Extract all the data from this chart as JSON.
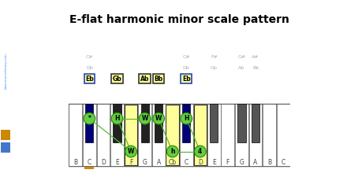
{
  "title": "E-flat harmonic minor scale pattern",
  "white_names": [
    "B",
    "C",
    "D",
    "E",
    "F",
    "G",
    "A",
    "Cb",
    "C",
    "D",
    "E",
    "F",
    "G",
    "A",
    "B",
    "C"
  ],
  "n_white": 16,
  "black_positions": [
    1,
    3,
    5,
    6,
    8,
    10,
    12,
    13
  ],
  "blue_blacks": [
    1,
    8
  ],
  "yellow_whites": [
    4,
    7,
    9
  ],
  "orange_underline_idx": 1,
  "black_top_labels": {
    "1": {
      "l1": "C#",
      "l2": "Db",
      "note": "Eb",
      "boxed": true
    },
    "3": {
      "l1": "",
      "l2": "",
      "note": "Gb",
      "boxed": true
    },
    "5": {
      "l1": "",
      "l2": "",
      "note": "Ab",
      "boxed": true
    },
    "6": {
      "l1": "",
      "l2": "",
      "note": "Bb",
      "boxed": true
    },
    "8": {
      "l1": "C#",
      "l2": "Db",
      "note": "Eb",
      "boxed": true
    },
    "10": {
      "l1": "F#",
      "l2": "Gb",
      "note": "",
      "boxed": false
    },
    "12": {
      "l1": "G#",
      "l2": "Ab",
      "note": "",
      "boxed": false
    },
    "13": {
      "l1": "A#",
      "l2": "Bb",
      "note": "",
      "boxed": false
    }
  },
  "circles": [
    {
      "bp": 1,
      "on_black": true,
      "label": "*"
    },
    {
      "bp": 3,
      "on_black": true,
      "label": "H"
    },
    {
      "bp": 5,
      "on_black": true,
      "label": "W"
    },
    {
      "bp": 6,
      "on_black": true,
      "label": "W"
    },
    {
      "bp": 8,
      "on_black": true,
      "label": "H"
    },
    {
      "wp": 4,
      "on_black": false,
      "label": "W"
    },
    {
      "wp": 7,
      "on_black": false,
      "label": "h"
    },
    {
      "wp": 9,
      "on_black": false,
      "label": "4"
    }
  ],
  "line_pairs": [
    [
      0,
      5
    ],
    [
      5,
      1
    ],
    [
      1,
      2
    ],
    [
      2,
      3
    ],
    [
      3,
      6
    ],
    [
      6,
      7
    ],
    [
      7,
      4
    ]
  ],
  "colors": {
    "bg": "#ffffff",
    "yellow": "#ffff99",
    "blue_black": "#00007a",
    "dark_black": "#222222",
    "gray_black": "#555555",
    "green_fill": "#66cc44",
    "green_edge": "#228800",
    "green_line": "#55bb33",
    "text_dark": "#444444",
    "text_gray": "#aaaaaa",
    "note_box_border_blue": "#2244bb",
    "note_box_border_black": "#333333",
    "sidebar_bg": "#111122",
    "sidebar_text_color": "#4488ff",
    "orange": "#cc8800",
    "blue_square": "#4477cc"
  },
  "sidebar_text": "basicmusictheory.com"
}
